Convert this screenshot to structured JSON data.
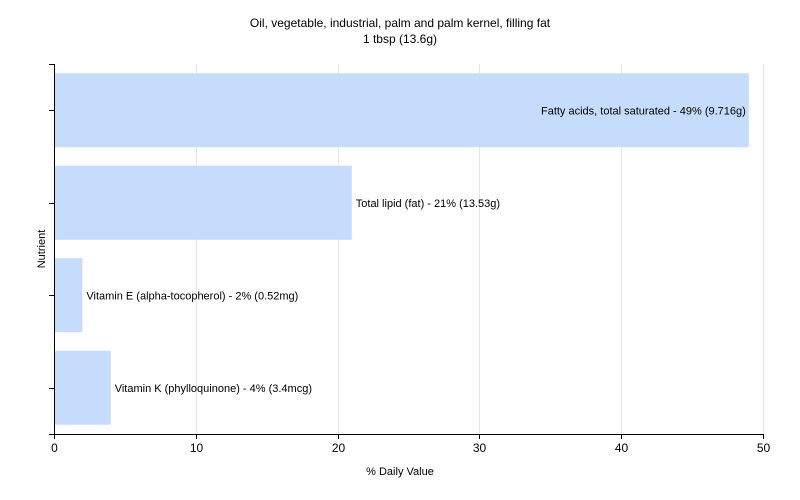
{
  "chart_data": {
    "type": "bar",
    "orientation": "horizontal",
    "title": "Oil, vegetable, industrial, palm and palm kernel, filling fat",
    "subtitle": "1 tbsp (13.6g)",
    "xlabel": "% Daily Value",
    "ylabel": "Nutrient",
    "xlim": [
      0,
      50
    ],
    "xticks": [
      "0",
      "10",
      "20",
      "30",
      "40",
      "50"
    ],
    "grid": true,
    "bar_color": "#c6dcfc",
    "categories": [
      "Fatty acids, total saturated",
      "Total lipid (fat)",
      "Vitamin E (alpha-tocopherol)",
      "Vitamin K (phylloquinone)"
    ],
    "values": [
      49,
      21,
      2,
      4
    ],
    "data_labels": [
      "Fatty acids, total saturated - 49% (9.716g)",
      "Total lipid (fat) - 21% (13.53g)",
      "Vitamin E (alpha-tocopherol) - 2% (0.52mg)",
      "Vitamin K (phylloquinone) - 4% (3.4mcg)"
    ]
  }
}
